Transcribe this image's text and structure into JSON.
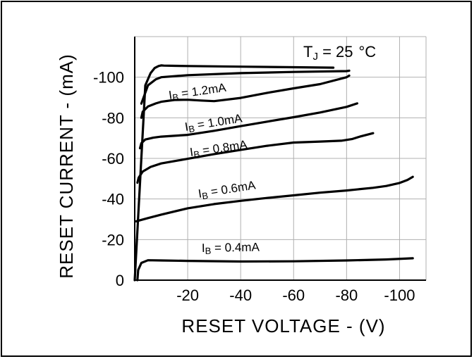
{
  "chart_data": {
    "type": "line",
    "xlabel": "RESET VOLTAGE - (V)",
    "ylabel": "RESET CURRENT - (mA)",
    "xlim": [
      0,
      -110
    ],
    "ylim": [
      0,
      -120
    ],
    "x_ticks": [
      "-20",
      "-40",
      "-60",
      "-80",
      "-100"
    ],
    "y_ticks": [
      "0",
      "-20",
      "-40",
      "-60",
      "-80",
      "-100"
    ],
    "grid": true,
    "annotation": {
      "main": "T",
      "sub": "J",
      "rest": " = 25",
      "unit": "°C"
    },
    "series": [
      {
        "label": {
          "pre": "I",
          "sub": "B",
          "post": " = 0.4mA"
        },
        "x": [
          -1,
          -1.3,
          -2.5,
          -5,
          -10,
          -20,
          -40,
          -60,
          -80,
          -95,
          -105
        ],
        "y": [
          0,
          -5,
          -8.5,
          -9.8,
          -9.7,
          -9.5,
          -9.2,
          -9.3,
          -9.7,
          -10.2,
          -10.8
        ]
      },
      {
        "label": {
          "pre": "I",
          "sub": "B",
          "post": " = 0.6mA"
        },
        "x": [
          -0.5,
          -5,
          -10,
          -20,
          -30,
          -40,
          -50,
          -60,
          -70,
          -80,
          -90,
          -95,
          -100,
          -103,
          -105
        ],
        "y": [
          -29,
          -30.6,
          -32.3,
          -35.4,
          -37.5,
          -39.1,
          -40.5,
          -41.8,
          -43.1,
          -44.2,
          -45.5,
          -46.4,
          -47.9,
          -49.4,
          -50.9
        ]
      },
      {
        "label": {
          "pre": "I",
          "sub": "B",
          "post": " = 0.8mA"
        },
        "x": [
          -1,
          -1.5,
          -3,
          -6,
          -10,
          -20,
          -30,
          -40,
          -50,
          -60,
          -70,
          -78,
          -82,
          -85,
          -90
        ],
        "y": [
          -48,
          -50.5,
          -53.5,
          -55.8,
          -57.5,
          -59.8,
          -62.1,
          -64.2,
          -66.2,
          -67.8,
          -68.3,
          -68.7,
          -69.5,
          -70.7,
          -72.4
        ]
      },
      {
        "label": {
          "pre": "I",
          "sub": "B",
          "post": " = 1.0mA"
        },
        "x": [
          -2,
          -2.5,
          -4,
          -7,
          -10,
          -20,
          -30,
          -40,
          -50,
          -60,
          -70,
          -80,
          -84
        ],
        "y": [
          -65,
          -67.5,
          -69.3,
          -70.2,
          -70.7,
          -71.6,
          -73.6,
          -75.9,
          -78.1,
          -80.3,
          -82.6,
          -85.4,
          -87.1
        ]
      },
      {
        "label": {
          "pre": "I",
          "sub": "B",
          "post": " = 1.2mA"
        },
        "x": [
          -2.5,
          -3,
          -5,
          -8,
          -10,
          -15,
          -20,
          -25,
          -30,
          -40,
          -50,
          -60,
          -70,
          -80,
          -81
        ],
        "y": [
          -80,
          -83,
          -85.6,
          -87.1,
          -87.9,
          -88.8,
          -88.9,
          -88.5,
          -88.2,
          -89.8,
          -92.3,
          -94.5,
          -96.6,
          -100,
          -100.8
        ]
      },
      {
        "label": null,
        "x": [
          -2.5,
          -5,
          -8,
          -10,
          -20,
          -40,
          -60,
          -80,
          -81
        ],
        "y": [
          -87,
          -96,
          -99,
          -100,
          -101,
          -102,
          -102.6,
          -103,
          -103.2
        ]
      },
      {
        "label": null,
        "x": [
          0,
          -4,
          -6,
          -7.5,
          -9,
          -10,
          -11,
          -15,
          -20,
          -40,
          -60,
          -75
        ],
        "y": [
          0,
          -96,
          -102,
          -104.5,
          -105.5,
          -105.8,
          -105.7,
          -105.6,
          -105.5,
          -105.2,
          -104.9,
          -104.7
        ]
      }
    ]
  }
}
